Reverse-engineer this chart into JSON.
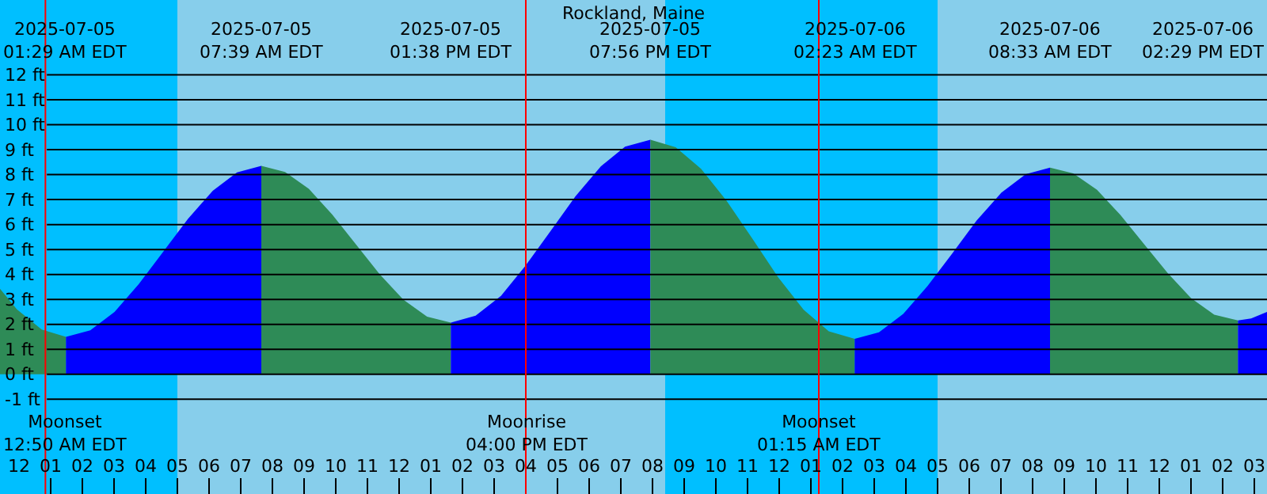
{
  "chart_data": {
    "type": "area",
    "title": "Rockland, Maine",
    "series": [
      {
        "color": "#2e8b57",
        "x": [
          "2025-07-04T23:24",
          "2025-07-04T23:56",
          "2025-07-05T00:43",
          "2025-07-05T01:29"
        ],
        "values": [
          3.43,
          2.6,
          1.79,
          1.5
        ]
      },
      {
        "color": "#0000ff",
        "x": [
          "2025-07-05T01:29",
          "2025-07-05T02:15",
          "2025-07-05T03:01",
          "2025-07-05T03:47",
          "2025-07-05T04:34",
          "2025-07-05T05:20",
          "2025-07-05T06:07",
          "2025-07-05T06:53",
          "2025-07-05T07:39"
        ],
        "values": [
          1.5,
          1.76,
          2.5,
          3.62,
          4.93,
          6.23,
          7.35,
          8.09,
          8.35
        ]
      },
      {
        "color": "#2e8b57",
        "x": [
          "2025-07-05T07:39",
          "2025-07-05T08:24",
          "2025-07-05T09:09",
          "2025-07-05T09:53",
          "2025-07-05T10:38",
          "2025-07-05T11:23",
          "2025-07-05T12:08",
          "2025-07-05T12:53",
          "2025-07-05T13:38"
        ],
        "values": [
          8.35,
          8.11,
          7.43,
          6.41,
          5.21,
          4.01,
          2.99,
          2.31,
          2.07
        ]
      },
      {
        "color": "#0000ff",
        "x": [
          "2025-07-05T13:38",
          "2025-07-05T14:25",
          "2025-07-05T15:13",
          "2025-07-05T15:59",
          "2025-07-05T16:47",
          "2025-07-05T17:34",
          "2025-07-05T18:22",
          "2025-07-05T19:08",
          "2025-07-05T19:56"
        ],
        "values": [
          2.07,
          2.35,
          3.14,
          4.34,
          5.74,
          7.13,
          8.33,
          9.12,
          9.4
        ]
      },
      {
        "color": "#2e8b57",
        "x": [
          "2025-07-05T19:56",
          "2025-07-05T20:44",
          "2025-07-05T21:32",
          "2025-07-05T22:21",
          "2025-07-05T23:10",
          "2025-07-05T23:58",
          "2025-07-06T00:46",
          "2025-07-06T01:34",
          "2025-07-06T02:23"
        ],
        "values": [
          9.4,
          9.1,
          8.23,
          6.93,
          5.41,
          3.89,
          2.59,
          1.72,
          1.42
        ]
      },
      {
        "color": "#0000ff",
        "x": [
          "2025-07-06T02:23",
          "2025-07-06T03:09",
          "2025-07-06T03:55",
          "2025-07-06T04:41",
          "2025-07-06T05:28",
          "2025-07-06T06:14",
          "2025-07-06T07:01",
          "2025-07-06T07:47",
          "2025-07-06T08:33"
        ],
        "values": [
          1.42,
          1.68,
          2.42,
          3.54,
          4.85,
          6.16,
          7.28,
          8.02,
          8.28
        ]
      },
      {
        "color": "#2e8b57",
        "x": [
          "2025-07-06T08:33",
          "2025-07-06T09:17",
          "2025-07-06T10:02",
          "2025-07-06T10:46",
          "2025-07-06T11:31",
          "2025-07-06T12:16",
          "2025-07-06T13:00",
          "2025-07-06T13:44",
          "2025-07-06T14:29"
        ],
        "values": [
          8.28,
          8.05,
          7.39,
          6.39,
          5.22,
          4.05,
          3.05,
          2.39,
          2.16
        ]
      },
      {
        "color": "#0000ff",
        "x": [
          "2025-07-06T14:29",
          "2025-07-06T14:54",
          "2025-07-06T15:24"
        ],
        "values": [
          2.16,
          2.24,
          2.5
        ]
      }
    ],
    "xlim": [
      "2025-07-04T23:24",
      "2025-07-06T15:24"
    ],
    "xticks": [
      {
        "value": "2025-07-05T00:00",
        "label": "12"
      },
      {
        "value": "2025-07-05T01:00",
        "label": "01"
      },
      {
        "value": "2025-07-05T02:00",
        "label": "02"
      },
      {
        "value": "2025-07-05T03:00",
        "label": "03"
      },
      {
        "value": "2025-07-05T04:00",
        "label": "04"
      },
      {
        "value": "2025-07-05T05:00",
        "label": "05"
      },
      {
        "value": "2025-07-05T06:00",
        "label": "06"
      },
      {
        "value": "2025-07-05T07:00",
        "label": "07"
      },
      {
        "value": "2025-07-05T08:00",
        "label": "08"
      },
      {
        "value": "2025-07-05T09:00",
        "label": "09"
      },
      {
        "value": "2025-07-05T10:00",
        "label": "10"
      },
      {
        "value": "2025-07-05T11:00",
        "label": "11"
      },
      {
        "value": "2025-07-05T12:00",
        "label": "12"
      },
      {
        "value": "2025-07-05T13:00",
        "label": "01"
      },
      {
        "value": "2025-07-05T14:00",
        "label": "02"
      },
      {
        "value": "2025-07-05T15:00",
        "label": "03"
      },
      {
        "value": "2025-07-05T16:00",
        "label": "04"
      },
      {
        "value": "2025-07-05T17:00",
        "label": "05"
      },
      {
        "value": "2025-07-05T18:00",
        "label": "06"
      },
      {
        "value": "2025-07-05T19:00",
        "label": "07"
      },
      {
        "value": "2025-07-05T20:00",
        "label": "08"
      },
      {
        "value": "2025-07-05T21:00",
        "label": "09"
      },
      {
        "value": "2025-07-05T22:00",
        "label": "10"
      },
      {
        "value": "2025-07-05T23:00",
        "label": "11"
      },
      {
        "value": "2025-07-06T00:00",
        "label": "12"
      },
      {
        "value": "2025-07-06T01:00",
        "label": "01"
      },
      {
        "value": "2025-07-06T02:00",
        "label": "02"
      },
      {
        "value": "2025-07-06T03:00",
        "label": "03"
      },
      {
        "value": "2025-07-06T04:00",
        "label": "04"
      },
      {
        "value": "2025-07-06T05:00",
        "label": "05"
      },
      {
        "value": "2025-07-06T06:00",
        "label": "06"
      },
      {
        "value": "2025-07-06T07:00",
        "label": "07"
      },
      {
        "value": "2025-07-06T08:00",
        "label": "08"
      },
      {
        "value": "2025-07-06T09:00",
        "label": "09"
      },
      {
        "value": "2025-07-06T10:00",
        "label": "10"
      },
      {
        "value": "2025-07-06T11:00",
        "label": "11"
      },
      {
        "value": "2025-07-06T12:00",
        "label": "12"
      },
      {
        "value": "2025-07-06T13:00",
        "label": "01"
      },
      {
        "value": "2025-07-06T14:00",
        "label": "02"
      },
      {
        "value": "2025-07-06T15:00",
        "label": "03"
      }
    ],
    "ylim": [
      -4.8,
      15
    ],
    "yticks": [
      {
        "value": -1,
        "label": "-1 ft"
      },
      {
        "value": 0,
        "label": "0 ft"
      },
      {
        "value": 1,
        "label": "1 ft"
      },
      {
        "value": 2,
        "label": "2 ft"
      },
      {
        "value": 3,
        "label": "3 ft"
      },
      {
        "value": 4,
        "label": "4 ft"
      },
      {
        "value": 5,
        "label": "5 ft"
      },
      {
        "value": 6,
        "label": "6 ft"
      },
      {
        "value": 7,
        "label": "7 ft"
      },
      {
        "value": 8,
        "label": "8 ft"
      },
      {
        "value": 9,
        "label": "9 ft"
      },
      {
        "value": 10,
        "label": "10 ft"
      },
      {
        "value": 11,
        "label": "11 ft"
      },
      {
        "value": 12,
        "label": "12 ft"
      }
    ],
    "grid": "y",
    "bands": [
      {
        "axis": "x",
        "from": "2025-07-04T23:24",
        "to": "2025-07-05T05:00",
        "color": "#00bfff"
      },
      {
        "axis": "x",
        "from": "2025-07-05T05:00",
        "to": "2025-07-05T20:24",
        "color": "#87ceeb"
      },
      {
        "axis": "x",
        "from": "2025-07-05T20:24",
        "to": "2025-07-06T05:00",
        "color": "#00bfff"
      },
      {
        "axis": "x",
        "from": "2025-07-06T05:00",
        "to": "2025-07-06T15:24",
        "color": "#87ceeb"
      }
    ],
    "ref_lines": [
      {
        "axis": "x",
        "value": "2025-07-05T00:50",
        "label": "Moonset\n12:50 AM EDT",
        "color": "#ff0000"
      },
      {
        "axis": "x",
        "value": "2025-07-05T16:00",
        "label": "Moonrise\n04:00 PM EDT",
        "color": "#ff0000"
      },
      {
        "axis": "x",
        "value": "2025-07-06T01:15",
        "label": "Moonset\n01:15 AM EDT",
        "color": "#ff0000"
      }
    ],
    "annotations": [
      "2025-07-05\n01:29 AM EDT",
      "2025-07-05\n07:39 AM EDT",
      "2025-07-05\n01:38 PM EDT",
      "2025-07-05\n07:56 PM EDT",
      "2025-07-06\n02:23 AM EDT",
      "2025-07-06\n08:33 AM EDT",
      "2025-07-06\n02:29 PM EDT"
    ]
  }
}
